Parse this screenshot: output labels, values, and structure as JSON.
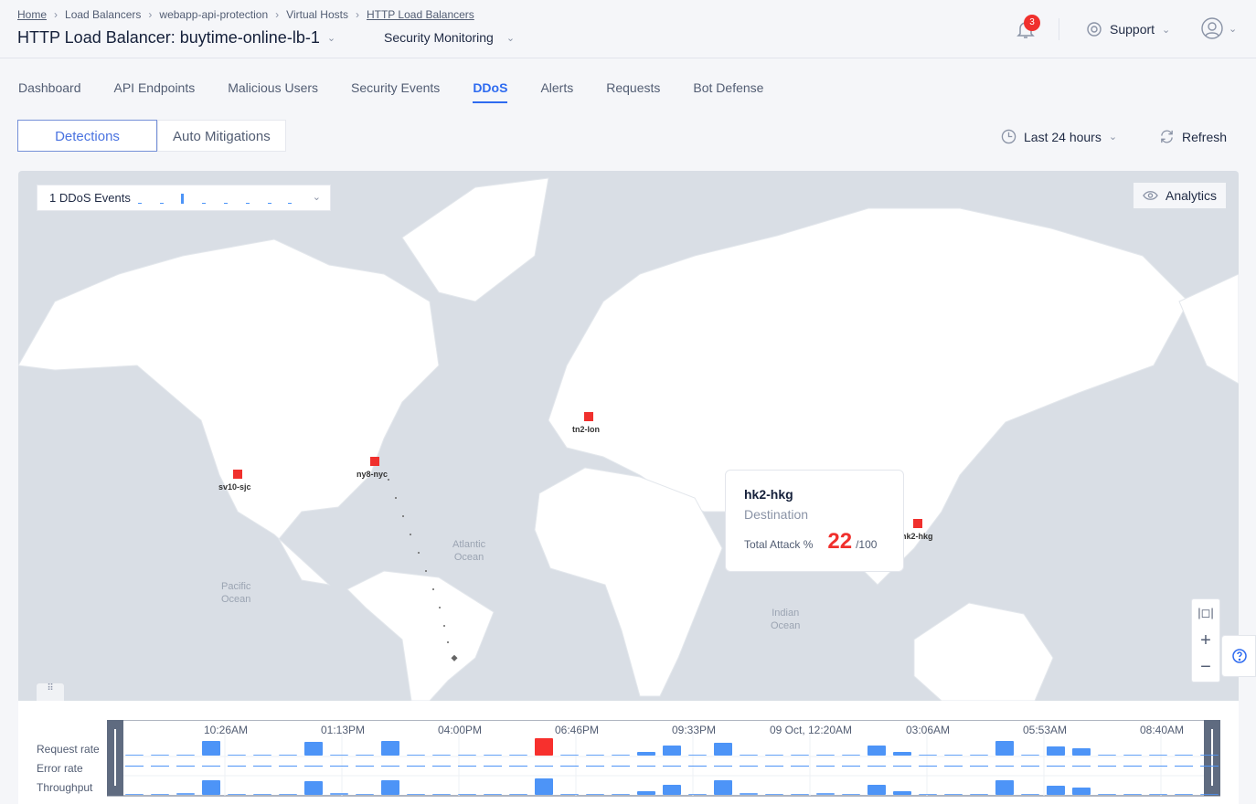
{
  "breadcrumb": [
    "Home",
    "Load Balancers",
    "webapp-api-protection",
    "Virtual Hosts",
    "HTTP Load Balancers"
  ],
  "header": {
    "title": "HTTP Load Balancer: buytime-online-lb-1",
    "section": "Security Monitoring",
    "notifications": "3",
    "support": "Support"
  },
  "tabs": [
    "Dashboard",
    "API Endpoints",
    "Malicious Users",
    "Security Events",
    "DDoS",
    "Alerts",
    "Requests",
    "Bot Defense"
  ],
  "active_tab": "DDoS",
  "segment": {
    "detections": "Detections",
    "auto": "Auto Mitigations"
  },
  "time_range": "Last 24 hours",
  "refresh": "Refresh",
  "map": {
    "events_label": "1 DDoS Events",
    "analytics": "Analytics",
    "sites": [
      "sv10-sjc",
      "ny8-nyc",
      "tn2-lon",
      "hk2-hkg"
    ],
    "oceans": {
      "atlantic": "Atlantic\nOcean",
      "pacific": "Pacific\nOcean",
      "indian": "Indian\nOcean"
    },
    "tooltip": {
      "site": "hk2-hkg",
      "role": "Destination",
      "label": "Total Attack %",
      "value": "22",
      "max": "/100"
    },
    "colors": {
      "marker": "#f0302d",
      "land": "#ffffff",
      "water": "#d9dee5"
    }
  },
  "timeline": {
    "rows": [
      "Request rate",
      "Error rate",
      "Throughput"
    ],
    "ticks": [
      "10:26AM",
      "01:13PM",
      "04:00PM",
      "06:46PM",
      "09:33PM",
      "09 Oct, 12:20AM",
      "03:06AM",
      "05:53AM",
      "08:40AM"
    ],
    "request_rate": [
      1,
      1,
      1,
      16,
      1,
      1,
      1,
      15,
      1,
      1,
      16,
      1,
      1,
      1,
      1,
      1,
      19,
      1,
      1,
      1,
      4,
      11,
      1,
      14,
      1,
      1,
      1,
      1,
      1,
      11,
      4,
      1,
      1,
      1,
      16,
      1,
      10,
      8,
      1,
      1,
      1,
      1,
      1
    ],
    "throughput": [
      1,
      1,
      2,
      16,
      1,
      1,
      1,
      15,
      2,
      1,
      16,
      1,
      1,
      1,
      1,
      1,
      18,
      1,
      1,
      1,
      4,
      11,
      1,
      16,
      2,
      1,
      1,
      2,
      1,
      11,
      4,
      1,
      1,
      1,
      16,
      1,
      10,
      8,
      1,
      1,
      1,
      1,
      1
    ],
    "highlight_index": 16,
    "colors": {
      "bar": "#4d94f7",
      "highlight": "#f7302d"
    }
  }
}
